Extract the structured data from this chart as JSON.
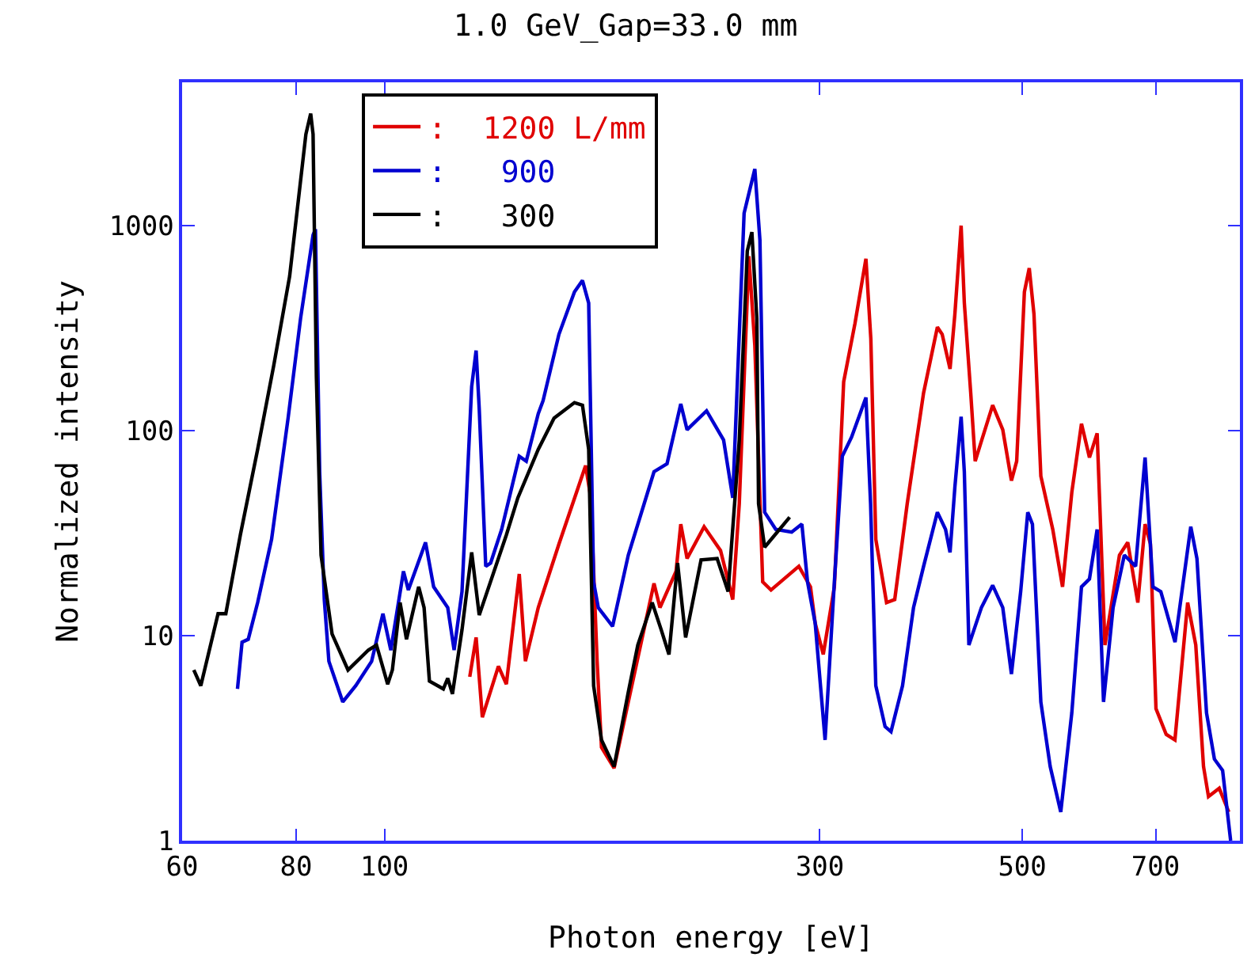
{
  "chart_data": {
    "type": "line",
    "title": "1.0 GeV_Gap=33.0 mm",
    "xlabel": "Photon energy [eV]",
    "ylabel": "Normalized intensity",
    "log": "xy",
    "xlim": [
      60,
      866
    ],
    "xticks": [
      60,
      80,
      100,
      300,
      500,
      700
    ],
    "ylim": [
      1,
      5000
    ],
    "yticks": [
      1,
      10,
      100,
      1000
    ],
    "grid": false,
    "legend": "top left",
    "line_style": "solid",
    "series": [
      {
        "name": ":  1200 L/mm",
        "color": "#e00000",
        "x": [
          124,
          126,
          128,
          133.3,
          136,
          140.5,
          142.7,
          147.4,
          155.3,
          166.1,
          168.3,
          171,
          172.9,
          178.5,
          185,
          197.4,
          200.4,
          208.7,
          211.2,
          214.6,
          224,
          233.5,
          240.8,
          244.8,
          250.8,
          254.6,
          259.7,
          265.2,
          284.5,
          293,
          296.5,
          302.6,
          311.2,
          318.6,
          327.8,
          337,
          341.2,
          345.5,
          355,
          362.4,
          374,
          389.8,
          403.6,
          408.5,
          416.7,
          421.8,
          428.5,
          432,
          439,
          444,
          451.4,
          464,
          476,
          486.5,
          493,
          502.7,
          508.9,
          515,
          524,
          540,
          553.5,
          566.6,
          580.6,
          592.4,
          604,
          608,
          616,
          639,
          652.5,
          669.3,
          681.7,
          690.9,
          700.7,
          719,
          735,
          759,
          774.7,
          790,
          800,
          822,
          842
        ],
        "values": [
          6.3,
          9.8,
          4.0,
          7.1,
          5.8,
          20,
          7.5,
          13.7,
          28,
          67.5,
          47,
          7.5,
          2.85,
          2.26,
          4.75,
          18,
          13.7,
          20.6,
          35,
          23.8,
          34,
          26,
          15,
          44,
          710,
          260,
          18.3,
          16.7,
          21.8,
          17.3,
          11.5,
          8.1,
          17.3,
          173,
          333,
          690,
          280,
          29.5,
          14.5,
          15,
          44,
          153,
          320,
          295,
          200,
          370,
          1000,
          420,
          153,
          71,
          90,
          133,
          101,
          57,
          71,
          475,
          620,
          370,
          60,
          33,
          17.3,
          50,
          108,
          74,
          97,
          44,
          9.0,
          24.7,
          28.5,
          14.5,
          35,
          28,
          4.4,
          3.3,
          3.1,
          14.5,
          9.0,
          2.3,
          1.64,
          1.8,
          1.38
        ]
      },
      {
        "name": ":   900",
        "color": "#0000d0",
        "x": [
          69,
          69.8,
          70.9,
          72.6,
          75.2,
          78.4,
          80.9,
          83.5,
          84,
          84.9,
          85.9,
          86.9,
          90,
          93,
          96.8,
          99.6,
          101.6,
          104.9,
          106.2,
          110.9,
          113.2,
          117.3,
          119.2,
          121.6,
          124.6,
          126,
          127,
          129.1,
          130.7,
          134.4,
          140.5,
          143,
          147.4,
          149.2,
          155.3,
          161.5,
          164.8,
          167.4,
          169.5,
          171.5,
          177.8,
          185,
          197.4,
          204,
          211.2,
          214.6,
          225.4,
          235.3,
          240.8,
          247.8,
          254.6,
          257.9,
          261,
          268.4,
          279.4,
          286.7,
          290.8,
          296.5,
          304,
          311.2,
          317.5,
          325,
          337,
          341,
          345.5,
          353.7,
          359,
          369.6,
          380,
          389.8,
          403.6,
          412,
          416.7,
          421.8,
          428.5,
          432,
          437,
          451,
          464,
          476,
          486.5,
          498,
          507,
          513,
          524,
          536.5,
          551,
          566.6,
          580.6,
          592.4,
          604,
          613.8,
          628.8,
          646.9,
          665.6,
          681.7,
          695.4,
          709.3,
          735.2,
          765,
          777,
          796,
          812,
          829,
          846
        ],
        "values": [
          5.5,
          9.3,
          9.6,
          14.5,
          29.5,
          115,
          352,
          900,
          960,
          63,
          15,
          7.5,
          4.75,
          5.7,
          7.5,
          12.8,
          8.5,
          20.6,
          16.7,
          28.5,
          17.3,
          13.7,
          8.5,
          16.4,
          164,
          246,
          128,
          21.8,
          22.6,
          33,
          75,
          71,
          121,
          140,
          295,
          475,
          540,
          419,
          18.3,
          13.7,
          11.1,
          24.7,
          63,
          69,
          135,
          101,
          125,
          90,
          47,
          1150,
          1890,
          850,
          40,
          33,
          32,
          35,
          18.3,
          11.5,
          3.1,
          18.3,
          75,
          93,
          145,
          44,
          5.7,
          3.6,
          3.4,
          5.7,
          13.7,
          21.8,
          40,
          33,
          25.5,
          53,
          117,
          63,
          9.0,
          13.7,
          17.6,
          13.7,
          6.5,
          16.4,
          40,
          35,
          4.75,
          2.3,
          1.38,
          4.2,
          17.3,
          18.9,
          33,
          4.75,
          13.7,
          24.7,
          21.8,
          74,
          17.3,
          16.4,
          9.3,
          34,
          23.8,
          4.2,
          2.5,
          2.2,
          1.0
        ]
      },
      {
        "name": ":   300",
        "color": "#000000",
        "x": [
          61.8,
          62.9,
          65.7,
          67,
          69.5,
          72.6,
          75.6,
          78.7,
          82,
          83,
          83.5,
          84.2,
          85.2,
          87.6,
          91.2,
          96,
          98,
          100.8,
          102,
          104,
          105.7,
          109,
          110.5,
          112,
          116,
          117.3,
          118.7,
          121.6,
          124.6,
          127,
          136,
          140,
          147.4,
          153.4,
          161.5,
          164.8,
          167.4,
          169.5,
          172.9,
          178.5,
          185,
          189.5,
          196.5,
          201,
          205,
          209.5,
          213.8,
          222.3,
          231.5,
          238,
          244.8,
          249.8,
          252.7,
          255.9,
          257,
          261,
          278
        ],
        "values": [
          6.8,
          5.7,
          12.8,
          12.8,
          31,
          81,
          207,
          565,
          2790,
          3520,
          2790,
          183,
          24.7,
          10.2,
          6.8,
          8.5,
          9.0,
          5.8,
          6.8,
          14.5,
          9.6,
          17.3,
          13.7,
          6.0,
          5.5,
          6.2,
          5.2,
          10.7,
          25.5,
          12.6,
          31,
          47,
          81,
          115,
          137,
          133,
          81,
          5.7,
          3.1,
          2.3,
          5.3,
          9.0,
          14.5,
          10.7,
          8.1,
          22.6,
          9.8,
          23.4,
          23.8,
          16.4,
          90,
          753,
          930,
          352,
          44,
          27,
          37.8
        ]
      }
    ]
  }
}
